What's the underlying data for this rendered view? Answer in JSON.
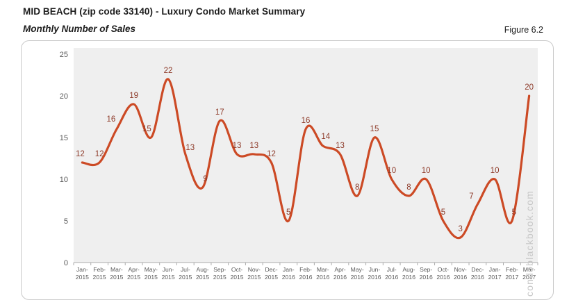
{
  "header": {
    "title": "MID BEACH (zip code 33140) - Luxury Condo Market Summary",
    "subtitle": "Monthly Number of Sales",
    "figure_label": "Figure 6.2"
  },
  "watermark": "condoblackbook.com",
  "chart_data": {
    "type": "line",
    "title": "Monthly Number of Sales",
    "categories": [
      "Jan-2015",
      "Feb-2015",
      "Mar-2015",
      "Apr-2015",
      "May-2015",
      "Jun-2015",
      "Jul-2015",
      "Aug-2015",
      "Sep-2015",
      "Oct-2015",
      "Nov-2015",
      "Dec-2015",
      "Jan-2016",
      "Feb-2016",
      "Mar-2016",
      "Apr-2016",
      "May-2016",
      "Jun-2016",
      "Jul-2016",
      "Aug-2016",
      "Sep-2016",
      "Oct-2016",
      "Nov-2016",
      "Dec-2016",
      "Jan-2017",
      "Feb-2017",
      "Mar-2017"
    ],
    "values": [
      12,
      12,
      16,
      19,
      15,
      22,
      13,
      9,
      17,
      13,
      13,
      12,
      5,
      16,
      14,
      13,
      8,
      15,
      10,
      8,
      10,
      5,
      3,
      7,
      10,
      5,
      20
    ],
    "xlabel": "",
    "ylabel": "",
    "ylim": [
      0,
      25
    ],
    "yticks": [
      0,
      5,
      10,
      15,
      20,
      25
    ],
    "grid": false,
    "legend": false,
    "smooth": true,
    "line_color": "#cc4a25",
    "data_label_color": "#8e3b2a",
    "plot_bg": "#efefef",
    "axis_color": "#ababab",
    "tick_label_color": "#595959",
    "watermark_color": "#c7c7c7"
  }
}
